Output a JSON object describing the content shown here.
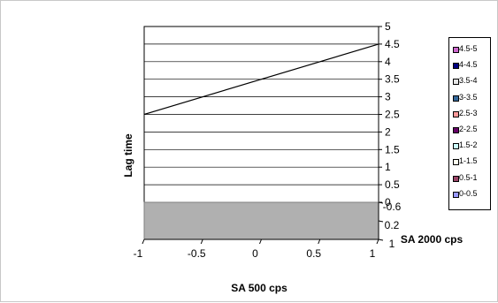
{
  "chart_data": {
    "type": "surface",
    "title": "",
    "xlabel": "SA 500 cps",
    "ylabel": "SA 2000 cps",
    "zlabel": "Lag time",
    "x_ticks": [
      "-1",
      "-0.5",
      "0",
      "0.5",
      "1"
    ],
    "y_ticks": [
      "-0.6",
      "0.2",
      "1"
    ],
    "z_ticks": [
      "0",
      "0.5",
      "1",
      "1.5",
      "2",
      "2.5",
      "3",
      "3.5",
      "4",
      "4.5",
      "5"
    ],
    "zlim": [
      0,
      5
    ],
    "grid": true,
    "legend_position": "right",
    "surface_line": {
      "x": [
        -1,
        1
      ],
      "y": [
        -0.6,
        -0.6
      ],
      "z": [
        2.5,
        4.5
      ]
    },
    "legend": [
      {
        "label": "4.5-5",
        "color": "#cc66cc"
      },
      {
        "label": "4-4.5",
        "color": "#000080"
      },
      {
        "label": "3.5-4",
        "color": "#e6e6e6"
      },
      {
        "label": "3-3.5",
        "color": "#336699"
      },
      {
        "label": "2.5-3",
        "color": "#ff9999"
      },
      {
        "label": "2-2.5",
        "color": "#660066"
      },
      {
        "label": "1.5-2",
        "color": "#ccffff"
      },
      {
        "label": "1-1.5",
        "color": "#ffffee"
      },
      {
        "label": "0.5-1",
        "color": "#994466"
      },
      {
        "label": "0-0.5",
        "color": "#9999ff"
      }
    ],
    "floor_color": "#b0b0b0"
  }
}
